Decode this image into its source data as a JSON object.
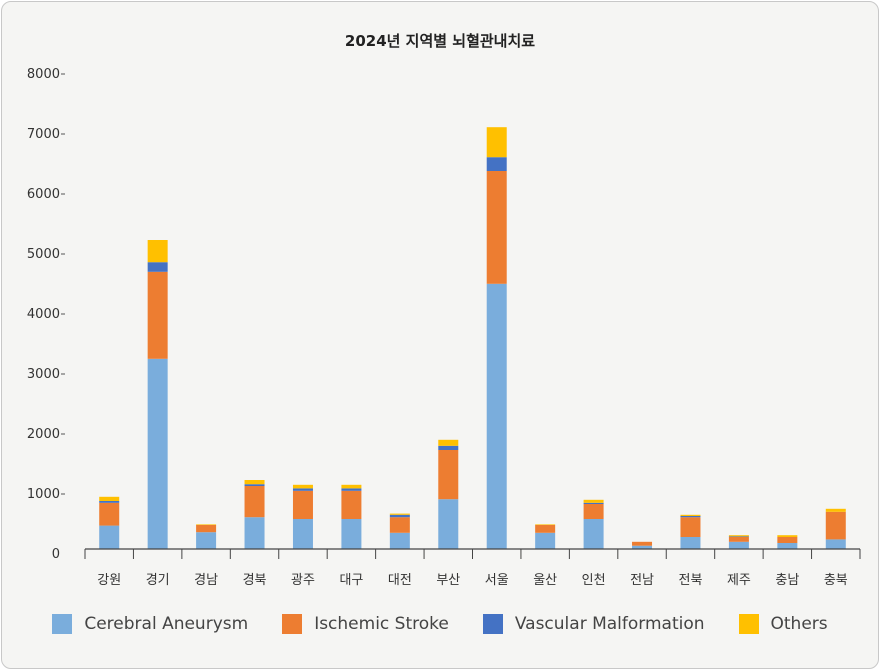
{
  "chart_data": {
    "type": "bar",
    "stacked": true,
    "title": "2024년 지역별 뇌혈관내치료",
    "xlabel": "",
    "ylabel": "",
    "ylim": [
      0,
      8000
    ],
    "yticks": [
      "0",
      "1000",
      "2000",
      "3000",
      "4000",
      "5000",
      "6000",
      "7000",
      "8000"
    ],
    "categories": [
      "강원",
      "경기",
      "경남",
      "경북",
      "광주",
      "대구",
      "대전",
      "부산",
      "서울",
      "울산",
      "인천",
      "전남",
      "전북",
      "제주",
      "충남",
      "충북"
    ],
    "series": [
      {
        "name": "Cerebral Aneurysm",
        "color": "#7aaddc",
        "values": [
          390,
          3170,
          280,
          530,
          500,
          500,
          270,
          830,
          4420,
          270,
          500,
          55,
          200,
          120,
          100,
          160
        ]
      },
      {
        "name": "Ischemic Stroke",
        "color": "#ed7d31",
        "values": [
          380,
          1450,
          120,
          520,
          470,
          470,
          260,
          820,
          1880,
          130,
          250,
          65,
          330,
          80,
          100,
          460
        ]
      },
      {
        "name": "Vascular Malformation",
        "color": "#4472c4",
        "values": [
          30,
          160,
          0,
          30,
          40,
          40,
          40,
          70,
          230,
          0,
          20,
          0,
          20,
          10,
          0,
          0
        ]
      },
      {
        "name": "Others",
        "color": "#ffc000",
        "values": [
          70,
          370,
          10,
          70,
          60,
          60,
          20,
          100,
          500,
          10,
          50,
          0,
          20,
          20,
          30,
          50
        ]
      }
    ],
    "grid": false,
    "legend_position": "bottom"
  }
}
